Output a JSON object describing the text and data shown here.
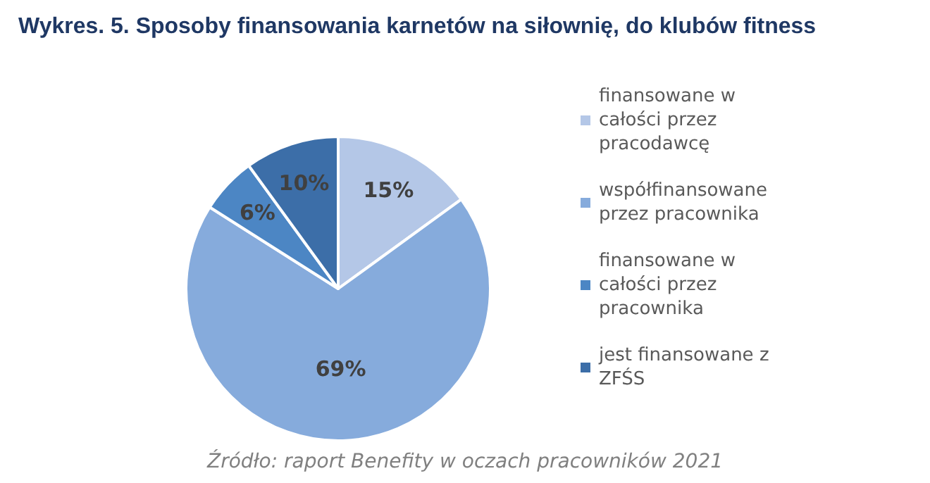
{
  "chart_data": {
    "type": "pie",
    "title": "Wykres. 5. Sposoby finansowania karnetów na siłownię, do klubów fitness",
    "categories": [
      "finansowane w całości przez pracodawcę",
      "współfinansowane przez pracownika",
      "finansowane w całości przez pracownika",
      "jest finansowane z ZFŚS"
    ],
    "values": [
      15,
      69,
      6,
      10
    ],
    "value_labels": [
      "15%",
      "69%",
      "6%",
      "10%"
    ],
    "colors": [
      "#b4c7e7",
      "#86abdc",
      "#4c86c4",
      "#3c6ea8"
    ],
    "legend": "right",
    "annotations": [
      "Źródło: raport Benefity w oczach pracowników 2021"
    ]
  }
}
